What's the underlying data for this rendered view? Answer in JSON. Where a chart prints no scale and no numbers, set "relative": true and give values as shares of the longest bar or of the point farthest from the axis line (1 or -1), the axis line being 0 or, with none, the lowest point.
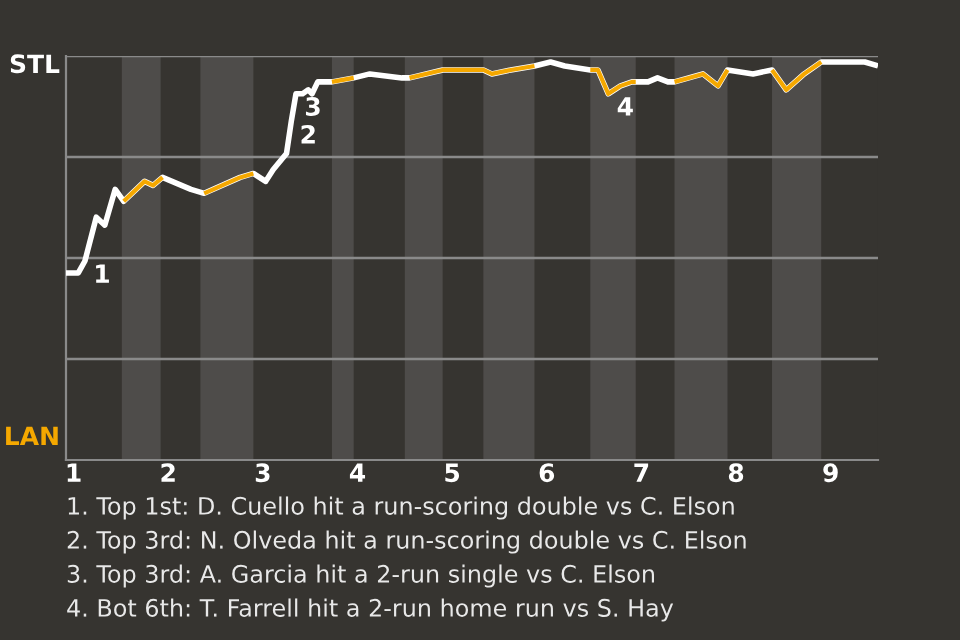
{
  "chart_data": {
    "type": "line",
    "relative": true,
    "x": [
      0.92,
      1.05,
      1.12,
      1.24,
      1.33,
      1.44,
      1.53,
      1.75,
      1.84,
      1.94,
      2.24,
      2.38,
      2.76,
      2.9,
      3.03,
      3.11,
      3.25,
      3.3,
      3.35,
      3.42,
      3.48,
      3.52,
      3.58,
      3.73,
      3.96,
      4.13,
      4.47,
      4.55,
      4.9,
      5.33,
      5.42,
      5.62,
      5.87,
      6.04,
      6.19,
      6.46,
      6.54,
      6.65,
      6.78,
      6.9,
      6.94,
      7.07,
      7.17,
      7.28,
      7.35,
      7.5,
      7.65,
      7.81,
      7.91,
      8.18,
      8.38,
      8.53,
      8.72,
      8.9,
      9.36,
      9.5
    ],
    "series": [
      {
        "color": "#ffffff",
        "values": [
          0.47,
          0.47,
          0.5,
          0.61,
          0.59,
          0.68,
          0.65,
          0.7,
          0.69,
          0.71,
          0.68,
          0.67,
          0.71,
          0.72,
          0.7,
          0.73,
          0.77,
          0.85,
          0.92,
          0.92,
          0.93,
          0.92,
          0.95,
          0.95,
          0.96,
          0.97,
          0.96,
          0.96,
          0.98,
          0.98,
          0.97,
          0.98,
          0.99,
          1,
          0.99,
          0.98,
          0.98,
          0.92,
          0.94,
          0.95,
          0.95,
          0.95,
          0.96,
          0.95,
          0.95,
          0.96,
          0.97,
          0.94,
          0.98,
          0.97,
          0.98,
          0.93,
          0.97,
          1,
          1,
          0.99
        ]
      },
      {
        "color": "#f5a800",
        "values": [
          null,
          null,
          null,
          null,
          null,
          null,
          0.65,
          0.7,
          0.69,
          0.71,
          null,
          0.67,
          0.71,
          0.72,
          null,
          null,
          null,
          null,
          null,
          null,
          null,
          null,
          null,
          0.95,
          0.96,
          null,
          null,
          0.96,
          0.98,
          0.98,
          0.97,
          0.98,
          0.99,
          null,
          null,
          0.98,
          0.98,
          0.92,
          0.94,
          0.95,
          0.95,
          null,
          null,
          null,
          0.95,
          0.96,
          0.97,
          0.94,
          0.98,
          null,
          0.98,
          0.93,
          0.97,
          1,
          null,
          null
        ]
      }
    ],
    "xlim": [
      0.92,
      9.5
    ],
    "xticks": [
      1,
      2,
      3,
      4,
      5,
      6,
      7,
      8,
      9
    ],
    "bands": [
      {
        "axis": "x",
        "from": 1.51,
        "to": 1.92,
        "color": "#4e4c4a"
      },
      {
        "axis": "x",
        "from": 2.34,
        "to": 2.9,
        "color": "#4e4c4a"
      },
      {
        "axis": "x",
        "from": 3.73,
        "to": 3.96,
        "color": "#4e4c4a"
      },
      {
        "axis": "x",
        "from": 4.5,
        "to": 4.9,
        "color": "#4e4c4a"
      },
      {
        "axis": "x",
        "from": 5.33,
        "to": 5.87,
        "color": "#4e4c4a"
      },
      {
        "axis": "x",
        "from": 6.46,
        "to": 6.94,
        "color": "#4e4c4a"
      },
      {
        "axis": "x",
        "from": 7.35,
        "to": 7.91,
        "color": "#4e4c4a"
      },
      {
        "axis": "x",
        "from": 8.38,
        "to": 8.9,
        "color": "#4e4c4a"
      }
    ],
    "annotations": [
      {
        "text": "1",
        "x": 1.12,
        "y": 0.5
      },
      {
        "text": "2",
        "x": 3.3,
        "y": 0.85
      },
      {
        "text": "3",
        "x": 3.35,
        "y": 0.92
      },
      {
        "text": "4",
        "x": 6.65,
        "y": 0.92
      },
      "STL",
      "LAN",
      "1. Top 1st: D. Cuello hit a run-scoring double vs C. Elson",
      "2. Top 3rd: N. Olveda hit a run-scoring double vs C. Elson",
      "3. Top 3rd: A. Garcia hit a 2-run single vs C. Elson",
      "4. Bot 6th: T. Farrell hit a 2-run home run vs S. Hay"
    ],
    "line_style": "solid",
    "marker": "none"
  }
}
